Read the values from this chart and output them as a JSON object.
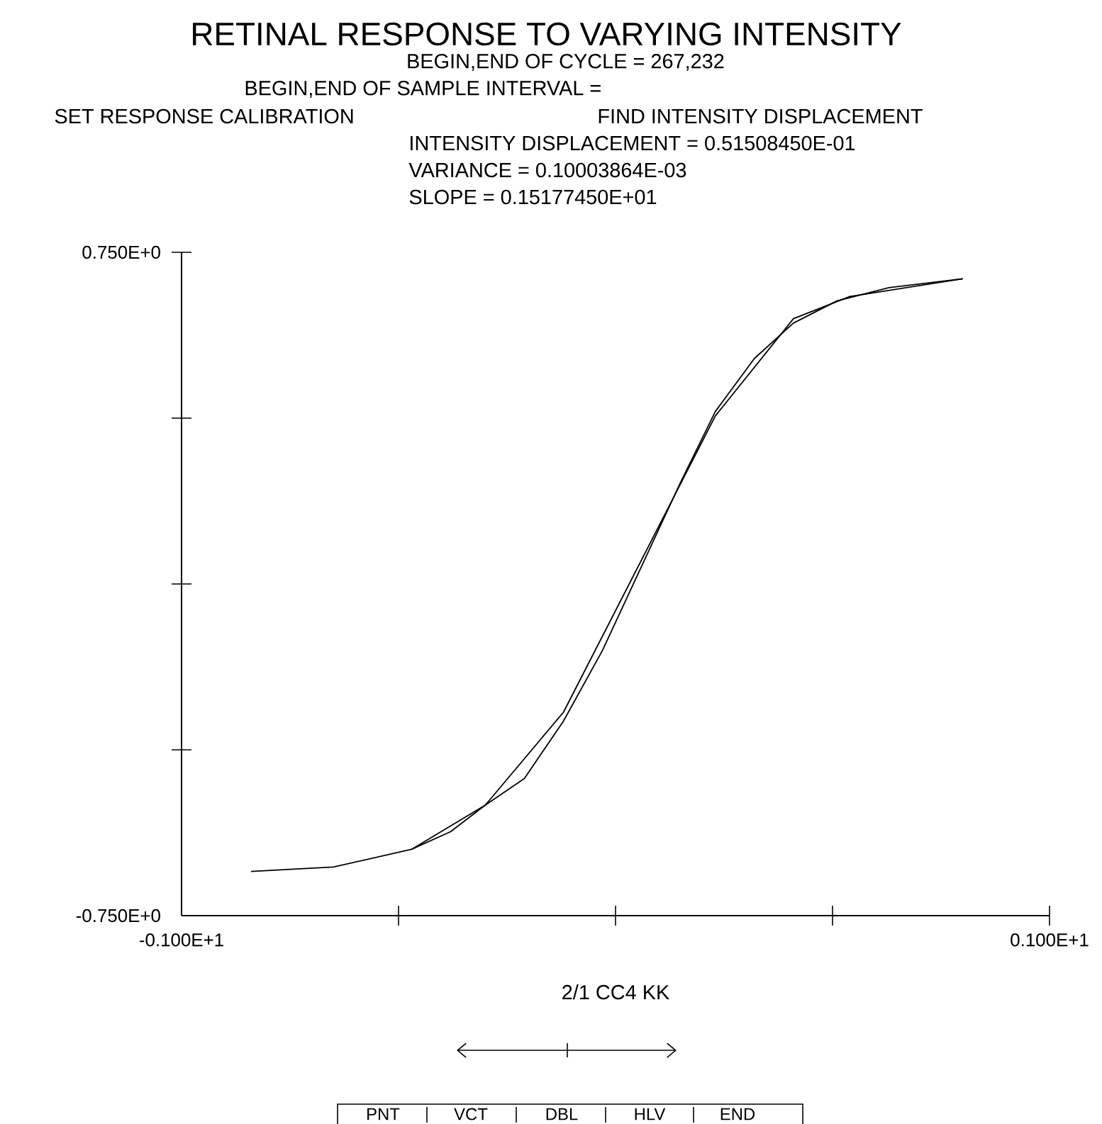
{
  "chart_data": {
    "type": "line",
    "title": "RETINAL RESPONSE TO VARYING INTENSITY",
    "subtitle": "BEGIN,END OF CYCLE = 267,232",
    "xlabel": "2/1 CC4 KK",
    "annotations": [
      "BEGIN,END OF SAMPLE INTERVAL =",
      "SET RESPONSE CALIBRATION",
      "FIND INTENSITY DISPLACEMENT",
      "INTENSITY DISPLACEMENT =   0.51508450E-01",
      "VARIANCE =   0.10003864E-03",
      "SLOPE =   0.15177450E+01",
      "PNT",
      "VCT",
      "DBL",
      "HLV",
      "END"
    ],
    "xlim": [
      -1,
      1
    ],
    "ylim": [
      -0.75,
      0.75
    ],
    "xticks": [
      {
        "value": -1,
        "label": "-0.100E+1"
      },
      {
        "value": -0.5,
        "label": null
      },
      {
        "value": 0,
        "label": null
      },
      {
        "value": 0.5,
        "label": null
      },
      {
        "value": 1,
        "label": "0.100E+1"
      }
    ],
    "yticks": [
      {
        "value": -0.75,
        "label": "-0.750E+0"
      },
      {
        "value": -0.375,
        "label": null
      },
      {
        "value": 0,
        "label": null
      },
      {
        "value": 0.375,
        "label": null
      },
      {
        "value": 0.75,
        "label": "0.750E+0"
      }
    ],
    "grid": false,
    "marker": "none",
    "line_style": "solid",
    "series": [
      {
        "color": "#000000",
        "x": [
          -0.84,
          -0.65,
          -0.47,
          -0.3,
          -0.12,
          0.23,
          0.41,
          0.54,
          0.8
        ],
        "values": [
          -0.65,
          -0.64,
          -0.6,
          -0.5,
          -0.29,
          0.38,
          0.6,
          0.65,
          0.69
        ]
      },
      {
        "color": "#000000",
        "x": [
          -0.47,
          -0.38,
          -0.3,
          -0.21,
          -0.12,
          -0.03,
          0.06,
          0.15,
          0.23,
          0.32,
          0.41,
          0.51,
          0.63,
          0.8
        ],
        "values": [
          -0.6,
          -0.56,
          -0.5,
          -0.44,
          -0.31,
          -0.15,
          0.04,
          0.23,
          0.39,
          0.51,
          0.59,
          0.64,
          0.67,
          0.69
        ]
      }
    ]
  }
}
